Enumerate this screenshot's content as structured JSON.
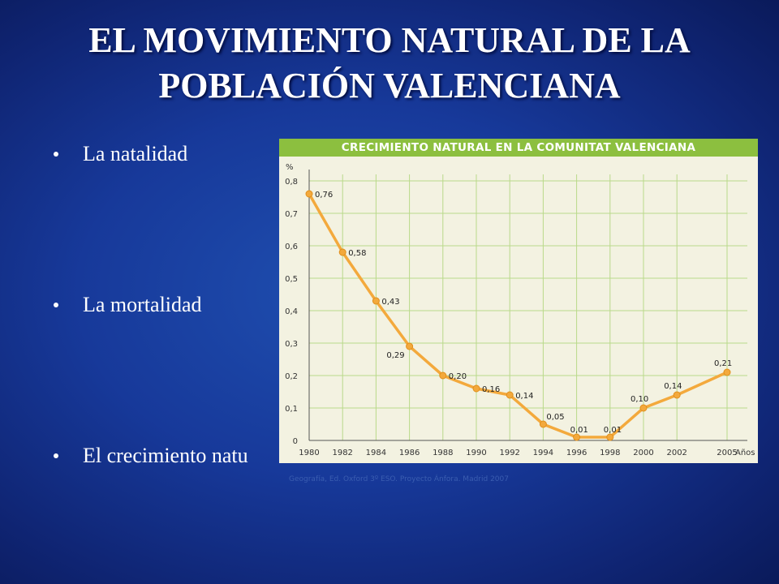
{
  "slide": {
    "title_line1": "EL MOVIMIENTO NATURAL DE LA",
    "title_line2": "POBLACIÓN VALENCIANA",
    "bullets": [
      "La natalidad",
      "La mortalidad",
      "El crecimiento natu"
    ],
    "caption": "Geografía, Ed. Oxford 3º ESO. Proyecto Ánfora. Madrid 2007",
    "background_color": "#17399a",
    "text_color": "#ffffff"
  },
  "chart_data": {
    "type": "line",
    "title": "CRECIMIENTO NATURAL EN LA COMUNITAT VALENCIANA",
    "ylabel": "%",
    "xlabel": "Años",
    "x": [
      1980,
      1982,
      1984,
      1986,
      1988,
      1990,
      1992,
      1994,
      1996,
      1998,
      2000,
      2002,
      2005
    ],
    "values": [
      0.76,
      0.58,
      0.43,
      0.29,
      0.2,
      0.16,
      0.14,
      0.05,
      0.01,
      0.01,
      0.1,
      0.14,
      0.21
    ],
    "data_labels": [
      "0,76",
      "0,58",
      "0,43",
      "0,29",
      "0,20",
      "0,16",
      "0,14",
      "0,05",
      "0,01",
      "0,01",
      "0,10",
      "0,14",
      "0,21"
    ],
    "x_ticks": [
      "1980",
      "1982",
      "1984",
      "1986",
      "1988",
      "1990",
      "1992",
      "1994",
      "1996",
      "1998",
      "2000",
      "2002",
      "2005"
    ],
    "y_ticks": [
      "0",
      "0,1",
      "0,2",
      "0,3",
      "0,4",
      "0,5",
      "0,6",
      "0,7",
      "0,8"
    ],
    "ylim": [
      0,
      0.8
    ],
    "grid": true,
    "line_color": "#f3a93c",
    "header_color": "#8cbf3f"
  }
}
